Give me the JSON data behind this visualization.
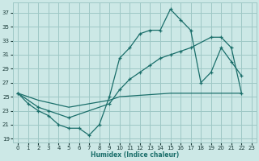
{
  "bg_color": "#cce8e6",
  "grid_color": "#9ec8c5",
  "line_color": "#1a6e6a",
  "xlabel": "Humidex (Indice chaleur)",
  "xlim": [
    -0.5,
    23.5
  ],
  "ylim": [
    18.5,
    38.5
  ],
  "yticks": [
    19,
    21,
    23,
    25,
    27,
    29,
    31,
    33,
    35,
    37
  ],
  "xticks": [
    0,
    1,
    2,
    3,
    4,
    5,
    6,
    7,
    8,
    9,
    10,
    11,
    12,
    13,
    14,
    15,
    16,
    17,
    18,
    19,
    20,
    21,
    22,
    23
  ],
  "line_top_x": [
    0,
    1,
    2,
    3,
    4,
    5,
    6,
    7,
    8,
    9,
    10,
    11,
    12,
    13,
    14,
    15,
    16,
    17,
    18,
    19,
    20,
    21,
    22
  ],
  "line_top_y": [
    25.5,
    24.0,
    23.0,
    22.3,
    21.0,
    20.5,
    20.5,
    19.5,
    21.0,
    25.0,
    30.5,
    32.0,
    34.0,
    34.5,
    34.5,
    37.5,
    36.0,
    34.5,
    27.0,
    28.5,
    32.0,
    30.0,
    28.0
  ],
  "line_mid_x": [
    0,
    2,
    3,
    5,
    9,
    10,
    11,
    12,
    13,
    14,
    15,
    16,
    17,
    19,
    20,
    21,
    22
  ],
  "line_mid_y": [
    25.5,
    23.5,
    23.0,
    22.0,
    24.0,
    26.0,
    27.5,
    28.5,
    29.5,
    30.5,
    31.0,
    31.5,
    32.0,
    33.5,
    33.5,
    32.0,
    25.5
  ],
  "line_bot_x": [
    0,
    1,
    2,
    5,
    9,
    10,
    15,
    19,
    20,
    21,
    22
  ],
  "line_bot_y": [
    25.5,
    25.0,
    24.5,
    23.5,
    24.5,
    25.0,
    25.5,
    25.5,
    25.5,
    25.5,
    25.5
  ]
}
